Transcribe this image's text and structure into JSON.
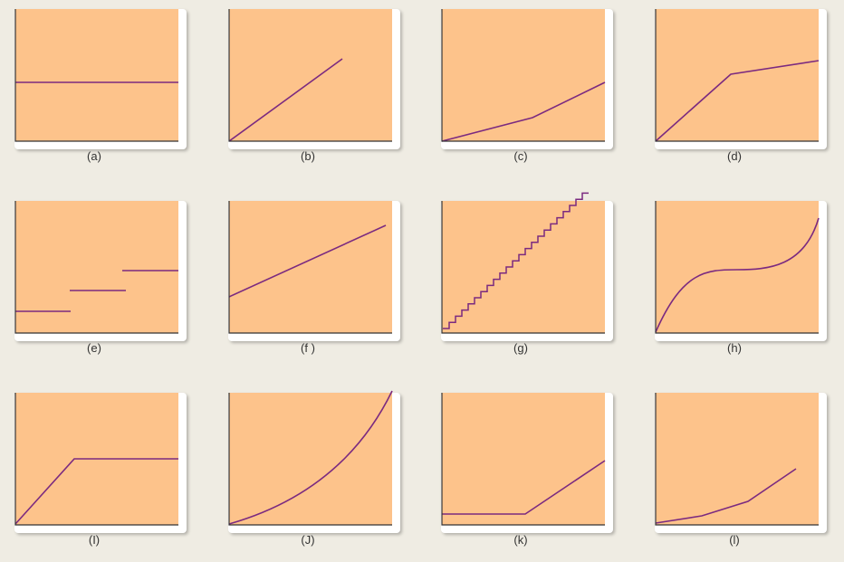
{
  "colors": {
    "background": "#efece3",
    "plot": "#fdc38b",
    "curve": "#7b2a80",
    "axis": "#333333"
  },
  "panels": [
    {
      "label": "(a)",
      "curve": "horizontal-line"
    },
    {
      "label": "(b)",
      "curve": "straight-line-from-origin"
    },
    {
      "label": "(c)",
      "curve": "piecewise-linear-increasing-slope"
    },
    {
      "label": "(d)",
      "curve": "piecewise-linear-decreasing-slope"
    },
    {
      "label": "(e)",
      "curve": "step-segments"
    },
    {
      "label": "(f )",
      "curve": "straight-line-with-intercept"
    },
    {
      "label": "(g)",
      "curve": "staircase"
    },
    {
      "label": "(h)",
      "curve": "cubic-s-curve"
    },
    {
      "label": "(I)",
      "curve": "ramp-then-flat"
    },
    {
      "label": "(J)",
      "curve": "convex-curve"
    },
    {
      "label": "(k)",
      "curve": "flat-then-ramp"
    },
    {
      "label": "(l)",
      "curve": "multi-segment-increasing-slope"
    }
  ]
}
